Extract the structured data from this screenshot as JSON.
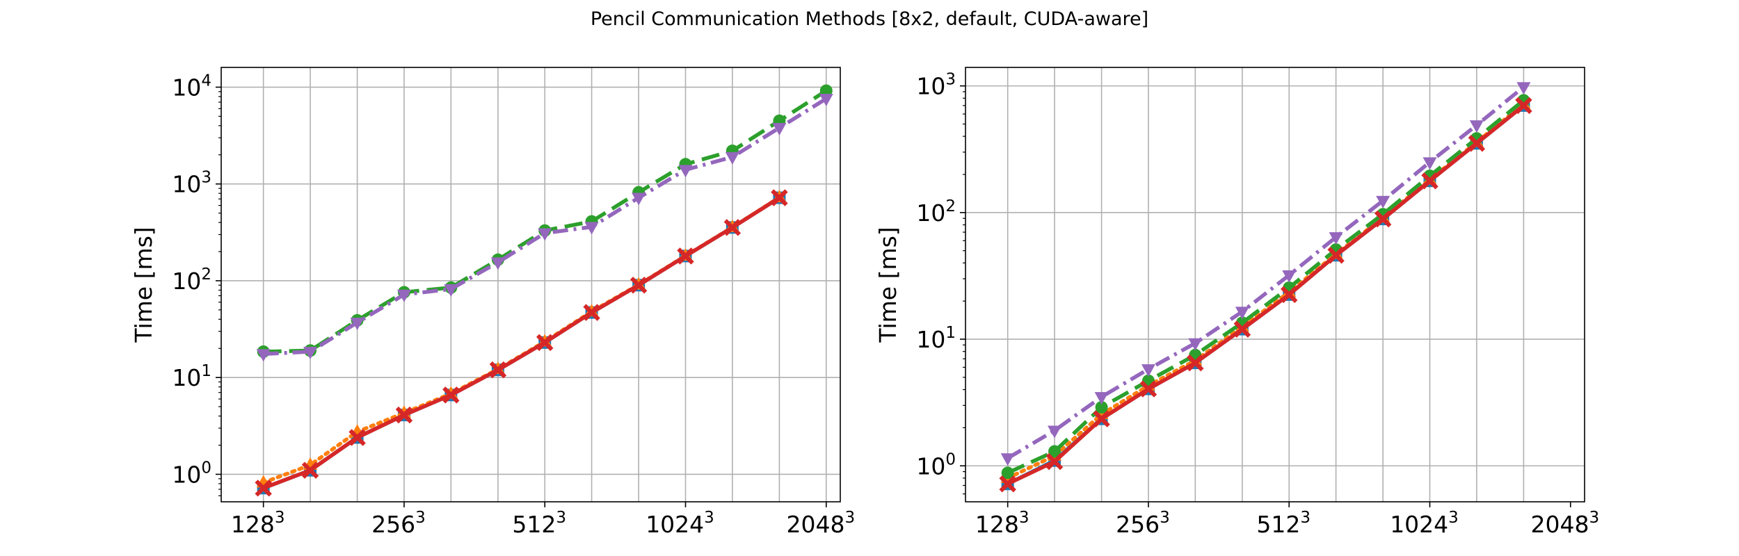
{
  "figure": {
    "title": "Pencil Communication Methods [8x2, default, CUDA-aware]"
  },
  "colors": {
    "blue": "#1f77b4",
    "orange": "#ff7f0e",
    "green": "#2ca02c",
    "red": "#d62728",
    "purple": "#9467bd",
    "grid": "#b0b0b0"
  },
  "chart_data": [
    {
      "type": "line",
      "xscale": "log2",
      "yscale": "log",
      "ylabel": "Time [ms]",
      "xlim": [
        6.7,
        11.1
      ],
      "ylim": [
        0.52,
        16000
      ],
      "grid": true,
      "xticks": [
        {
          "base": "128",
          "exp": "3",
          "value": 7
        },
        {
          "base": "256",
          "exp": "3",
          "value": 8
        },
        {
          "base": "512",
          "exp": "3",
          "value": 9
        },
        {
          "base": "1024",
          "exp": "3",
          "value": 10
        },
        {
          "base": "2048",
          "exp": "3",
          "value": 11
        }
      ],
      "yticks": [
        {
          "base": "10",
          "exp": "0",
          "value": 1
        },
        {
          "base": "10",
          "exp": "1",
          "value": 10
        },
        {
          "base": "10",
          "exp": "2",
          "value": 100
        },
        {
          "base": "10",
          "exp": "3",
          "value": 1000
        },
        {
          "base": "10",
          "exp": "4",
          "value": 10000
        }
      ],
      "x": [
        7,
        7.333,
        7.667,
        8,
        8.333,
        8.667,
        9,
        9.333,
        9.667,
        10,
        10.333,
        10.667,
        11
      ],
      "series": [
        {
          "color": "blue",
          "dash": "solid",
          "marker": "square",
          "values": [
            0.72,
            1.1,
            2.4,
            4.1,
            6.6,
            12,
            23,
            47,
            90,
            180,
            355,
            720,
            null
          ]
        },
        {
          "color": "orange",
          "dash": "dotted",
          "marker": "triangle-up",
          "values": [
            0.82,
            1.25,
            2.75,
            4.3,
            6.8,
            12.2,
            23.5,
            48,
            91,
            181,
            357,
            725,
            null
          ]
        },
        {
          "color": "green",
          "dash": "dashed",
          "marker": "circle",
          "values": [
            18.5,
            19,
            39,
            76,
            85,
            165,
            330,
            410,
            820,
            1600,
            2200,
            4500,
            9200
          ]
        },
        {
          "color": "red",
          "dash": "solid",
          "marker": "x",
          "values": [
            0.72,
            1.1,
            2.4,
            4.1,
            6.6,
            12,
            23,
            47,
            90,
            180,
            355,
            720,
            null
          ]
        },
        {
          "color": "purple",
          "dash": "dashdot",
          "marker": "triangle-down",
          "values": [
            17.5,
            18.5,
            37,
            72,
            82,
            155,
            310,
            360,
            720,
            1400,
            1900,
            3800,
            7600
          ]
        }
      ]
    },
    {
      "type": "line",
      "xscale": "log2",
      "yscale": "log",
      "ylabel": "Time [ms]",
      "xlim": [
        6.7,
        11.1
      ],
      "ylim": [
        0.52,
        1400
      ],
      "grid": true,
      "xticks": [
        {
          "base": "128",
          "exp": "3",
          "value": 7
        },
        {
          "base": "256",
          "exp": "3",
          "value": 8
        },
        {
          "base": "512",
          "exp": "3",
          "value": 9
        },
        {
          "base": "1024",
          "exp": "3",
          "value": 10
        },
        {
          "base": "2048",
          "exp": "3",
          "value": 11
        }
      ],
      "yticks": [
        {
          "base": "10",
          "exp": "0",
          "value": 1
        },
        {
          "base": "10",
          "exp": "1",
          "value": 10
        },
        {
          "base": "10",
          "exp": "2",
          "value": 100
        },
        {
          "base": "10",
          "exp": "3",
          "value": 1000
        }
      ],
      "x": [
        7,
        7.333,
        7.667,
        8,
        8.333,
        8.667,
        9,
        9.333,
        9.667,
        10,
        10.333,
        10.667
      ],
      "series": [
        {
          "color": "blue",
          "dash": "solid",
          "marker": "square",
          "values": [
            0.72,
            1.1,
            2.35,
            4.05,
            6.5,
            12,
            22.5,
            46,
            89,
            178,
            352,
            700
          ]
        },
        {
          "color": "orange",
          "dash": "dotted",
          "marker": "triangle-up",
          "values": [
            0.8,
            1.2,
            2.55,
            4.3,
            6.8,
            12.5,
            23.5,
            47,
            91,
            182,
            360,
            720
          ]
        },
        {
          "color": "green",
          "dash": "dashed",
          "marker": "circle",
          "values": [
            0.88,
            1.3,
            2.9,
            4.7,
            7.5,
            13.5,
            25.5,
            51,
            97,
            195,
            385,
            770
          ]
        },
        {
          "color": "red",
          "dash": "solid",
          "marker": "x",
          "values": [
            0.72,
            1.08,
            2.35,
            4.05,
            6.5,
            12,
            22.5,
            46,
            89,
            178,
            352,
            700
          ]
        },
        {
          "color": "purple",
          "dash": "dashdot",
          "marker": "triangle-down",
          "values": [
            1.15,
            1.9,
            3.5,
            5.8,
            9.3,
            16.5,
            32,
            64,
            124,
            250,
            490,
            980
          ]
        }
      ]
    }
  ]
}
